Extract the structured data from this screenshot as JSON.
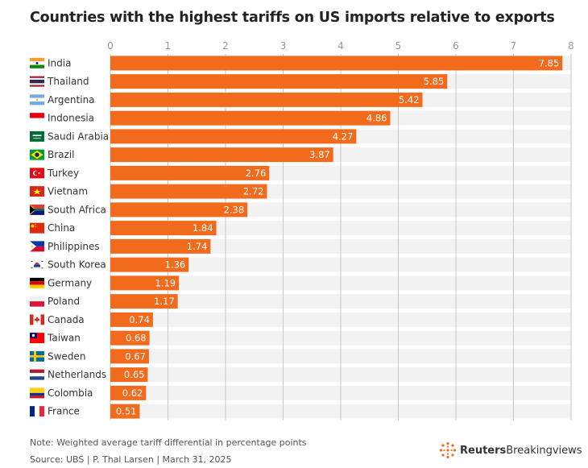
{
  "chart_data": {
    "type": "bar",
    "orientation": "horizontal",
    "title": "Countries with the highest tariffs on US imports relative to exports",
    "categories": [
      "India",
      "Thailand",
      "Argentina",
      "Indonesia",
      "Saudi Arabia",
      "Brazil",
      "Turkey",
      "Vietnam",
      "South Africa",
      "China",
      "Philippines",
      "South Korea",
      "Germany",
      "Poland",
      "Canada",
      "Taiwan",
      "Sweden",
      "Netherlands",
      "Colombia",
      "France"
    ],
    "values": [
      7.85,
      5.85,
      5.42,
      4.86,
      4.27,
      3.87,
      2.76,
      2.72,
      2.38,
      1.84,
      1.74,
      1.36,
      1.19,
      1.17,
      0.74,
      0.68,
      0.67,
      0.65,
      0.62,
      0.51
    ],
    "value_labels": [
      "7.85",
      "5.85",
      "5.42",
      "4.86",
      "4.27",
      "3.87",
      "2.76",
      "2.72",
      "2.38",
      "1.84",
      "1.74",
      "1.36",
      "1.19",
      "1.17",
      "0.74",
      "0.68",
      "0.67",
      "0.65",
      "0.62",
      "0.51"
    ],
    "flag_icons": [
      "india-flag-icon",
      "thailand-flag-icon",
      "argentina-flag-icon",
      "indonesia-flag-icon",
      "saudi-arabia-flag-icon",
      "brazil-flag-icon",
      "turkey-flag-icon",
      "vietnam-flag-icon",
      "south-africa-flag-icon",
      "china-flag-icon",
      "philippines-flag-icon",
      "south-korea-flag-icon",
      "germany-flag-icon",
      "poland-flag-icon",
      "canada-flag-icon",
      "taiwan-flag-icon",
      "sweden-flag-icon",
      "netherlands-flag-icon",
      "colombia-flag-icon",
      "france-flag-icon"
    ],
    "xlim": [
      0,
      8
    ],
    "xticks": [
      "0",
      "1",
      "2",
      "3",
      "4",
      "5",
      "6",
      "7",
      "8"
    ],
    "axis_position": "top",
    "grid": true,
    "bar_color": "#f26b1d",
    "band_color": "#f2f2f2"
  },
  "footer": {
    "note": "Note: Weighted average tariff differential in percentage points",
    "source": "Source: UBS | P. Thal Larsen | March 31, 2025",
    "brand_bold": "Reuters",
    "brand_rest": "Breakingviews"
  }
}
